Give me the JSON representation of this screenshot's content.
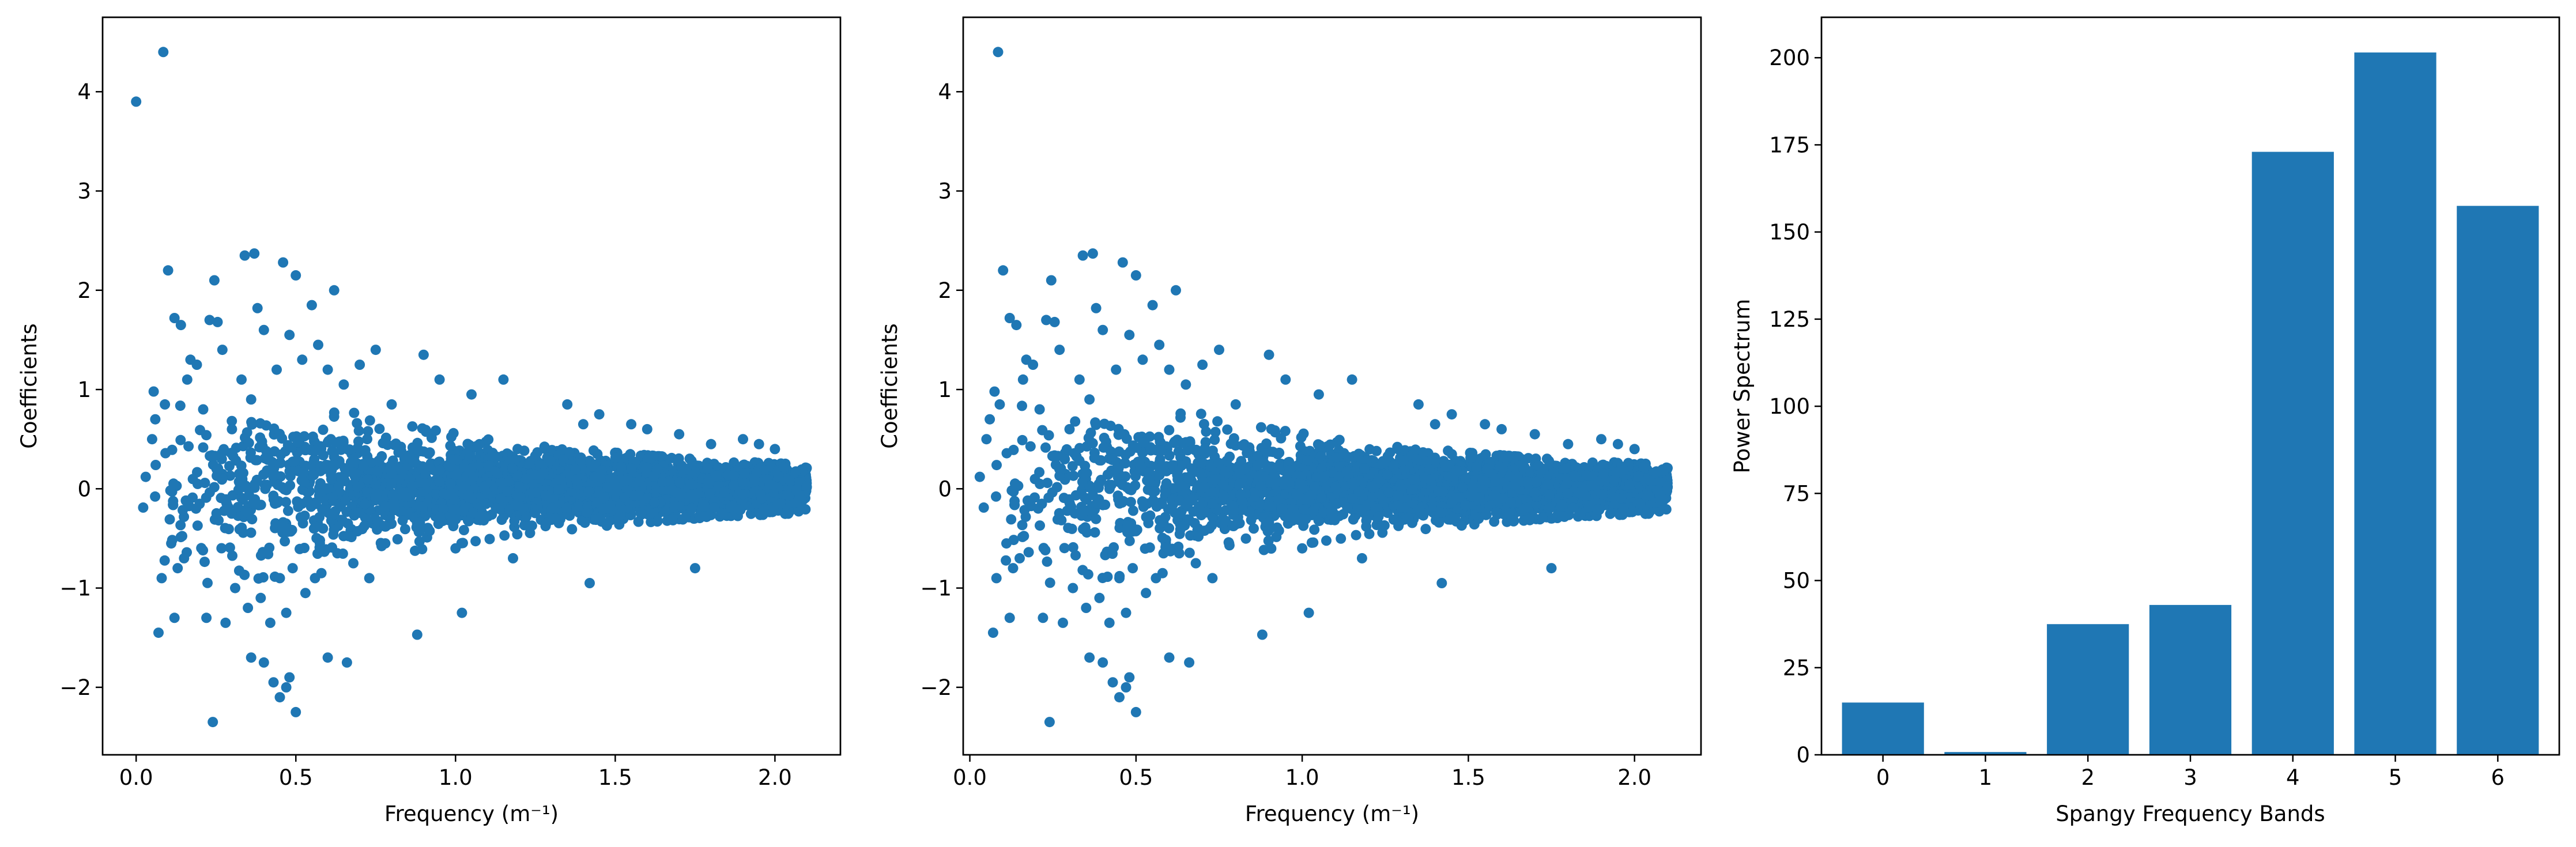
{
  "figure": {
    "background": "#ffffff",
    "accent_color": "#1f77b4"
  },
  "chart_data": [
    {
      "type": "scatter",
      "title": "",
      "xlabel": "Frequency (m⁻¹)",
      "ylabel": "Coefficients",
      "xlim": [
        -0.105,
        2.205
      ],
      "ylim": [
        -2.68,
        4.75
      ],
      "xticks": [
        0.0,
        0.5,
        1.0,
        1.5,
        2.0
      ],
      "xtick_labels": [
        "0.0",
        "0.5",
        "1.0",
        "1.5",
        "2.0"
      ],
      "yticks": [
        -2,
        -1,
        0,
        1,
        2,
        3,
        4
      ],
      "ytick_labels": [
        "−2",
        "−1",
        "0",
        "1",
        "2",
        "3",
        "4"
      ],
      "grid": false,
      "legend": "none",
      "color": "#1f77b4",
      "series": [
        {
          "x": [
            0.0,
            0.085,
            0.1,
            0.12,
            0.14,
            0.17,
            0.23,
            0.245,
            0.255,
            0.34,
            0.37,
            0.38,
            0.46,
            0.48,
            0.5,
            0.55,
            0.62,
            0.06,
            0.05,
            0.03,
            0.09,
            0.11,
            0.13,
            0.16,
            0.19,
            0.21,
            0.27,
            0.3,
            0.33,
            0.36,
            0.4,
            0.44,
            0.52,
            0.57,
            0.6,
            0.65,
            0.7,
            0.75,
            0.8,
            0.9,
            0.95,
            1.05,
            1.15,
            1.35,
            1.4,
            1.45,
            1.55,
            1.6,
            1.7,
            1.8,
            1.9,
            1.95,
            2.0,
            0.07,
            0.08,
            0.12,
            0.15,
            0.22,
            0.28,
            0.31,
            0.35,
            0.39,
            0.42,
            0.45,
            0.47,
            0.49,
            0.53,
            0.56,
            0.58,
            0.63,
            0.68,
            0.73,
            0.78,
            0.88,
            1.0,
            1.02,
            1.18,
            1.42,
            1.75,
            0.24,
            0.36,
            0.4,
            0.45,
            0.48,
            0.5,
            0.6,
            0.66,
            0.43,
            0.47
          ],
          "y": [
            3.9,
            4.4,
            2.2,
            1.72,
            1.65,
            1.3,
            1.7,
            2.1,
            1.68,
            2.35,
            2.37,
            1.82,
            2.28,
            1.55,
            2.15,
            1.85,
            2.0,
            0.7,
            0.5,
            0.12,
            0.85,
            -0.55,
            -0.8,
            1.1,
            1.25,
            0.8,
            1.4,
            0.6,
            1.1,
            0.9,
            1.6,
            1.2,
            1.3,
            1.45,
            1.2,
            1.05,
            1.25,
            1.4,
            0.85,
            1.35,
            1.1,
            0.95,
            1.1,
            0.85,
            0.65,
            0.75,
            0.65,
            0.6,
            0.55,
            0.45,
            0.5,
            0.45,
            0.4,
            -1.45,
            -0.9,
            -1.3,
            -0.7,
            -1.3,
            -1.35,
            -1.0,
            -1.2,
            -1.1,
            -1.35,
            -0.9,
            -1.25,
            -0.8,
            -1.05,
            -0.9,
            -0.85,
            -0.65,
            -0.75,
            -0.9,
            -0.55,
            -1.47,
            -0.6,
            -1.25,
            -0.7,
            -0.95,
            -0.8,
            -2.35,
            -1.7,
            -1.75,
            -2.1,
            -1.9,
            -2.25,
            -1.7,
            -1.75,
            -1.95,
            -2.0
          ]
        }
      ],
      "density_band": {
        "x": [
          0.0,
          0.3,
          0.6,
          0.9,
          1.2,
          1.5,
          1.8,
          2.1
        ],
        "spread": [
          0.9,
          0.85,
          0.75,
          0.55,
          0.42,
          0.33,
          0.26,
          0.22
        ]
      }
    },
    {
      "type": "scatter",
      "title": "",
      "xlabel": "Frequency (m⁻¹)",
      "ylabel": "Coefficients",
      "xlim": [
        -0.02,
        2.2
      ],
      "ylim": [
        -2.68,
        4.75
      ],
      "xticks": [
        0.0,
        0.5,
        1.0,
        1.5,
        2.0
      ],
      "xtick_labels": [
        "0.0",
        "0.5",
        "1.0",
        "1.5",
        "2.0"
      ],
      "yticks": [
        -2,
        -1,
        0,
        1,
        2,
        3,
        4
      ],
      "ytick_labels": [
        "−2",
        "−1",
        "0",
        "1",
        "2",
        "3",
        "4"
      ],
      "grid": false,
      "legend": "none",
      "color": "#1f77b4",
      "series": [
        {
          "x": [
            0.085,
            0.1,
            0.12,
            0.14,
            0.17,
            0.23,
            0.245,
            0.255,
            0.34,
            0.37,
            0.38,
            0.46,
            0.48,
            0.5,
            0.55,
            0.62,
            0.06,
            0.05,
            0.03,
            0.09,
            0.11,
            0.13,
            0.16,
            0.19,
            0.21,
            0.27,
            0.3,
            0.33,
            0.36,
            0.4,
            0.44,
            0.52,
            0.57,
            0.6,
            0.65,
            0.7,
            0.75,
            0.8,
            0.9,
            0.95,
            1.05,
            1.15,
            1.35,
            1.4,
            1.45,
            1.55,
            1.6,
            1.7,
            1.8,
            1.9,
            1.95,
            2.0,
            0.07,
            0.08,
            0.12,
            0.15,
            0.22,
            0.28,
            0.31,
            0.35,
            0.39,
            0.42,
            0.45,
            0.47,
            0.49,
            0.53,
            0.56,
            0.58,
            0.63,
            0.68,
            0.73,
            0.78,
            0.88,
            1.0,
            1.02,
            1.18,
            1.42,
            1.75,
            0.24,
            0.36,
            0.4,
            0.45,
            0.48,
            0.5,
            0.6,
            0.66,
            0.43,
            0.47
          ],
          "y": [
            4.4,
            2.2,
            1.72,
            1.65,
            1.3,
            1.7,
            2.1,
            1.68,
            2.35,
            2.37,
            1.82,
            2.28,
            1.55,
            2.15,
            1.85,
            2.0,
            0.7,
            0.5,
            0.12,
            0.85,
            -0.55,
            -0.8,
            1.1,
            1.25,
            0.8,
            1.4,
            0.6,
            1.1,
            0.9,
            1.6,
            1.2,
            1.3,
            1.45,
            1.2,
            1.05,
            1.25,
            1.4,
            0.85,
            1.35,
            1.1,
            0.95,
            1.1,
            0.85,
            0.65,
            0.75,
            0.65,
            0.6,
            0.55,
            0.45,
            0.5,
            0.45,
            0.4,
            -1.45,
            -0.9,
            -1.3,
            -0.7,
            -1.3,
            -1.35,
            -1.0,
            -1.2,
            -1.1,
            -1.35,
            -0.9,
            -1.25,
            -0.8,
            -1.05,
            -0.9,
            -0.85,
            -0.65,
            -0.75,
            -0.9,
            -0.55,
            -1.47,
            -0.6,
            -1.25,
            -0.7,
            -0.95,
            -0.8,
            -2.35,
            -1.7,
            -1.75,
            -2.1,
            -1.9,
            -2.25,
            -1.7,
            -1.75,
            -1.95,
            -2.0
          ]
        }
      ],
      "density_band": {
        "x": [
          0.02,
          0.3,
          0.6,
          0.9,
          1.2,
          1.5,
          1.8,
          2.1
        ],
        "spread": [
          0.9,
          0.85,
          0.75,
          0.55,
          0.42,
          0.33,
          0.26,
          0.22
        ]
      }
    },
    {
      "type": "bar",
      "title": "",
      "xlabel": "Spangy Frequency Bands",
      "ylabel": "Power Spectrum",
      "categories": [
        "0",
        "1",
        "2",
        "3",
        "4",
        "5",
        "6"
      ],
      "values": [
        15,
        0.8,
        37.5,
        43,
        173,
        201.5,
        157.5
      ],
      "ylim": [
        0,
        211.6
      ],
      "yticks": [
        0,
        25,
        50,
        75,
        100,
        125,
        150,
        175,
        200
      ],
      "ytick_labels": [
        "0",
        "25",
        "50",
        "75",
        "100",
        "125",
        "150",
        "175",
        "200"
      ],
      "grid": false,
      "legend": "none",
      "color": "#1f77b4"
    }
  ]
}
